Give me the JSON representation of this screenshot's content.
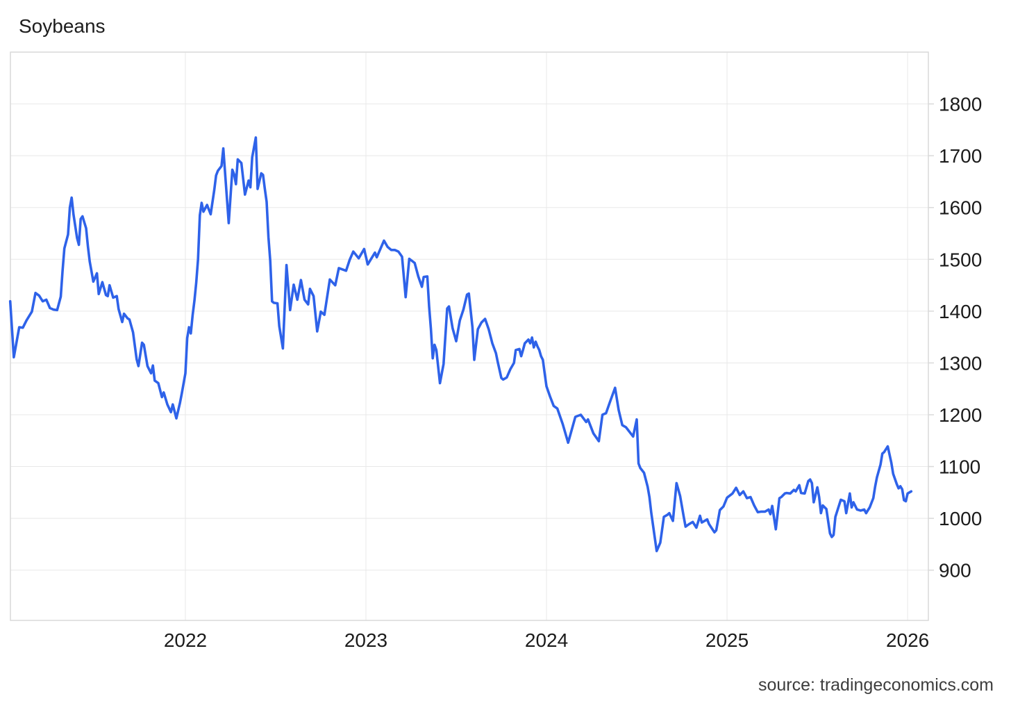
{
  "chart": {
    "title": "Soybeans",
    "source": "source: tradingeconomics.com"
  },
  "chart_data": {
    "type": "line",
    "title": "Soybeans",
    "legend": [],
    "grid": true,
    "line_color": "#2e62e9",
    "x_ticks": [
      2022,
      2023,
      2024,
      2025,
      2026
    ],
    "y_ticks": [
      900,
      1000,
      1100,
      1200,
      1300,
      1400,
      1500,
      1600,
      1700,
      1800
    ],
    "x_domain": [
      2021.031,
      2026.115
    ],
    "y_domain": [
      803,
      1900
    ],
    "series": [
      {
        "name": "Soybeans",
        "points": [
          [
            2021.03,
            1419
          ],
          [
            2021.05,
            1311
          ],
          [
            2021.08,
            1369
          ],
          [
            2021.1,
            1368
          ],
          [
            2021.12,
            1382
          ],
          [
            2021.15,
            1399
          ],
          [
            2021.17,
            1435
          ],
          [
            2021.19,
            1430
          ],
          [
            2021.21,
            1419
          ],
          [
            2021.23,
            1422
          ],
          [
            2021.25,
            1406
          ],
          [
            2021.27,
            1403
          ],
          [
            2021.29,
            1402
          ],
          [
            2021.31,
            1428
          ],
          [
            2021.32,
            1478
          ],
          [
            2021.33,
            1521
          ],
          [
            2021.35,
            1548
          ],
          [
            2021.36,
            1600
          ],
          [
            2021.37,
            1619
          ],
          [
            2021.38,
            1587
          ],
          [
            2021.4,
            1541
          ],
          [
            2021.41,
            1528
          ],
          [
            2021.42,
            1578
          ],
          [
            2021.43,
            1583
          ],
          [
            2021.45,
            1560
          ],
          [
            2021.46,
            1525
          ],
          [
            2021.47,
            1496
          ],
          [
            2021.49,
            1457
          ],
          [
            2021.51,
            1473
          ],
          [
            2021.52,
            1433
          ],
          [
            2021.54,
            1456
          ],
          [
            2021.56,
            1431
          ],
          [
            2021.57,
            1429
          ],
          [
            2021.58,
            1450
          ],
          [
            2021.6,
            1426
          ],
          [
            2021.62,
            1429
          ],
          [
            2021.63,
            1404
          ],
          [
            2021.65,
            1379
          ],
          [
            2021.66,
            1395
          ],
          [
            2021.68,
            1386
          ],
          [
            2021.69,
            1384
          ],
          [
            2021.71,
            1359
          ],
          [
            2021.73,
            1307
          ],
          [
            2021.74,
            1294
          ],
          [
            2021.76,
            1339
          ],
          [
            2021.77,
            1335
          ],
          [
            2021.79,
            1294
          ],
          [
            2021.81,
            1280
          ],
          [
            2021.82,
            1295
          ],
          [
            2021.83,
            1266
          ],
          [
            2021.85,
            1261
          ],
          [
            2021.87,
            1234
          ],
          [
            2021.88,
            1243
          ],
          [
            2021.9,
            1220
          ],
          [
            2021.92,
            1205
          ],
          [
            2021.93,
            1220
          ],
          [
            2021.95,
            1193
          ],
          [
            2021.97,
            1223
          ],
          [
            2021.98,
            1241
          ],
          [
            2022.0,
            1280
          ],
          [
            2022.01,
            1348
          ],
          [
            2022.02,
            1369
          ],
          [
            2022.03,
            1357
          ],
          [
            2022.04,
            1392
          ],
          [
            2022.05,
            1420
          ],
          [
            2022.06,
            1455
          ],
          [
            2022.07,
            1500
          ],
          [
            2022.08,
            1585
          ],
          [
            2022.09,
            1609
          ],
          [
            2022.1,
            1592
          ],
          [
            2022.12,
            1605
          ],
          [
            2022.14,
            1587
          ],
          [
            2022.16,
            1634
          ],
          [
            2022.17,
            1662
          ],
          [
            2022.18,
            1671
          ],
          [
            2022.2,
            1680
          ],
          [
            2022.21,
            1714
          ],
          [
            2022.24,
            1570
          ],
          [
            2022.26,
            1673
          ],
          [
            2022.27,
            1664
          ],
          [
            2022.28,
            1645
          ],
          [
            2022.29,
            1693
          ],
          [
            2022.31,
            1686
          ],
          [
            2022.33,
            1625
          ],
          [
            2022.35,
            1652
          ],
          [
            2022.36,
            1639
          ],
          [
            2022.37,
            1697
          ],
          [
            2022.39,
            1735
          ],
          [
            2022.4,
            1636
          ],
          [
            2022.42,
            1666
          ],
          [
            2022.43,
            1663
          ],
          [
            2022.44,
            1636
          ],
          [
            2022.45,
            1611
          ],
          [
            2022.46,
            1543
          ],
          [
            2022.47,
            1497
          ],
          [
            2022.48,
            1419
          ],
          [
            2022.49,
            1416
          ],
          [
            2022.51,
            1415
          ],
          [
            2022.52,
            1371
          ],
          [
            2022.54,
            1328
          ],
          [
            2022.56,
            1489
          ],
          [
            2022.58,
            1402
          ],
          [
            2022.6,
            1451
          ],
          [
            2022.62,
            1422
          ],
          [
            2022.64,
            1460
          ],
          [
            2022.66,
            1422
          ],
          [
            2022.68,
            1413
          ],
          [
            2022.69,
            1443
          ],
          [
            2022.71,
            1429
          ],
          [
            2022.73,
            1361
          ],
          [
            2022.75,
            1399
          ],
          [
            2022.77,
            1393
          ],
          [
            2022.8,
            1461
          ],
          [
            2022.83,
            1450
          ],
          [
            2022.85,
            1483
          ],
          [
            2022.89,
            1478
          ],
          [
            2022.91,
            1499
          ],
          [
            2022.93,
            1515
          ],
          [
            2022.96,
            1502
          ],
          [
            2022.99,
            1520
          ],
          [
            2023.01,
            1490
          ],
          [
            2023.05,
            1513
          ],
          [
            2023.06,
            1504
          ],
          [
            2023.1,
            1536
          ],
          [
            2023.12,
            1524
          ],
          [
            2023.14,
            1518
          ],
          [
            2023.16,
            1518
          ],
          [
            2023.18,
            1515
          ],
          [
            2023.2,
            1505
          ],
          [
            2023.22,
            1427
          ],
          [
            2023.24,
            1501
          ],
          [
            2023.27,
            1493
          ],
          [
            2023.29,
            1467
          ],
          [
            2023.31,
            1447
          ],
          [
            2023.32,
            1466
          ],
          [
            2023.34,
            1467
          ],
          [
            2023.35,
            1409
          ],
          [
            2023.36,
            1365
          ],
          [
            2023.37,
            1309
          ],
          [
            2023.38,
            1335
          ],
          [
            2023.39,
            1325
          ],
          [
            2023.41,
            1261
          ],
          [
            2023.43,
            1298
          ],
          [
            2023.45,
            1405
          ],
          [
            2023.46,
            1409
          ],
          [
            2023.48,
            1367
          ],
          [
            2023.5,
            1342
          ],
          [
            2023.52,
            1382
          ],
          [
            2023.54,
            1403
          ],
          [
            2023.56,
            1432
          ],
          [
            2023.57,
            1434
          ],
          [
            2023.59,
            1369
          ],
          [
            2023.6,
            1306
          ],
          [
            2023.62,
            1365
          ],
          [
            2023.64,
            1378
          ],
          [
            2023.66,
            1385
          ],
          [
            2023.68,
            1365
          ],
          [
            2023.7,
            1338
          ],
          [
            2023.72,
            1319
          ],
          [
            2023.73,
            1302
          ],
          [
            2023.75,
            1271
          ],
          [
            2023.76,
            1268
          ],
          [
            2023.78,
            1272
          ],
          [
            2023.8,
            1288
          ],
          [
            2023.82,
            1300
          ],
          [
            2023.83,
            1325
          ],
          [
            2023.85,
            1327
          ],
          [
            2023.86,
            1313
          ],
          [
            2023.87,
            1325
          ],
          [
            2023.88,
            1338
          ],
          [
            2023.9,
            1345
          ],
          [
            2023.91,
            1338
          ],
          [
            2023.92,
            1349
          ],
          [
            2023.93,
            1330
          ],
          [
            2023.94,
            1341
          ],
          [
            2023.95,
            1332
          ],
          [
            2023.96,
            1325
          ],
          [
            2023.97,
            1313
          ],
          [
            2023.98,
            1306
          ],
          [
            2023.99,
            1280
          ],
          [
            2024.0,
            1255
          ],
          [
            2024.02,
            1235
          ],
          [
            2024.04,
            1217
          ],
          [
            2024.06,
            1212
          ],
          [
            2024.09,
            1182
          ],
          [
            2024.12,
            1146
          ],
          [
            2024.16,
            1196
          ],
          [
            2024.19,
            1200
          ],
          [
            2024.22,
            1186
          ],
          [
            2024.23,
            1191
          ],
          [
            2024.26,
            1164
          ],
          [
            2024.29,
            1149
          ],
          [
            2024.31,
            1200
          ],
          [
            2024.33,
            1203
          ],
          [
            2024.35,
            1223
          ],
          [
            2024.38,
            1252
          ],
          [
            2024.4,
            1209
          ],
          [
            2024.42,
            1180
          ],
          [
            2024.43,
            1178
          ],
          [
            2024.44,
            1176
          ],
          [
            2024.48,
            1158
          ],
          [
            2024.5,
            1191
          ],
          [
            2024.51,
            1106
          ],
          [
            2024.52,
            1097
          ],
          [
            2024.54,
            1088
          ],
          [
            2024.56,
            1061
          ],
          [
            2024.57,
            1041
          ],
          [
            2024.58,
            1011
          ],
          [
            2024.61,
            937
          ],
          [
            2024.63,
            953
          ],
          [
            2024.65,
            1003
          ],
          [
            2024.67,
            1007
          ],
          [
            2024.68,
            1010
          ],
          [
            2024.7,
            995
          ],
          [
            2024.72,
            1068
          ],
          [
            2024.74,
            1043
          ],
          [
            2024.76,
            1003
          ],
          [
            2024.77,
            984
          ],
          [
            2024.79,
            989
          ],
          [
            2024.81,
            993
          ],
          [
            2024.83,
            982
          ],
          [
            2024.85,
            1005
          ],
          [
            2024.86,
            992
          ],
          [
            2024.87,
            994
          ],
          [
            2024.89,
            998
          ],
          [
            2024.9,
            989
          ],
          [
            2024.93,
            973
          ],
          [
            2024.94,
            977
          ],
          [
            2024.96,
            1016
          ],
          [
            2024.98,
            1023
          ],
          [
            2025.0,
            1040
          ],
          [
            2025.03,
            1048
          ],
          [
            2025.05,
            1059
          ],
          [
            2025.07,
            1045
          ],
          [
            2025.09,
            1052
          ],
          [
            2025.11,
            1039
          ],
          [
            2025.13,
            1041
          ],
          [
            2025.15,
            1025
          ],
          [
            2025.17,
            1012
          ],
          [
            2025.19,
            1013
          ],
          [
            2025.21,
            1013
          ],
          [
            2025.23,
            1017
          ],
          [
            2025.24,
            1008
          ],
          [
            2025.25,
            1024
          ],
          [
            2025.27,
            979
          ],
          [
            2025.29,
            1039
          ],
          [
            2025.3,
            1041
          ],
          [
            2025.32,
            1048
          ],
          [
            2025.33,
            1049
          ],
          [
            2025.35,
            1048
          ],
          [
            2025.37,
            1055
          ],
          [
            2025.38,
            1052
          ],
          [
            2025.4,
            1064
          ],
          [
            2025.41,
            1049
          ],
          [
            2025.43,
            1048
          ],
          [
            2025.45,
            1072
          ],
          [
            2025.46,
            1075
          ],
          [
            2025.47,
            1068
          ],
          [
            2025.48,
            1031
          ],
          [
            2025.5,
            1060
          ],
          [
            2025.51,
            1041
          ],
          [
            2025.52,
            1010
          ],
          [
            2025.53,
            1025
          ],
          [
            2025.55,
            1018
          ],
          [
            2025.57,
            971
          ],
          [
            2025.58,
            964
          ],
          [
            2025.59,
            968
          ],
          [
            2025.6,
            1003
          ],
          [
            2025.62,
            1025
          ],
          [
            2025.63,
            1036
          ],
          [
            2025.65,
            1033
          ],
          [
            2025.66,
            1010
          ],
          [
            2025.68,
            1048
          ],
          [
            2025.69,
            1021
          ],
          [
            2025.7,
            1031
          ],
          [
            2025.72,
            1017
          ],
          [
            2025.74,
            1015
          ],
          [
            2025.76,
            1017
          ],
          [
            2025.77,
            1010
          ],
          [
            2025.79,
            1021
          ],
          [
            2025.81,
            1039
          ],
          [
            2025.82,
            1061
          ],
          [
            2025.83,
            1079
          ],
          [
            2025.85,
            1104
          ],
          [
            2025.86,
            1125
          ],
          [
            2025.87,
            1128
          ],
          [
            2025.89,
            1139
          ],
          [
            2025.91,
            1107
          ],
          [
            2025.92,
            1086
          ],
          [
            2025.94,
            1066
          ],
          [
            2025.95,
            1058
          ],
          [
            2025.96,
            1062
          ],
          [
            2025.97,
            1056
          ],
          [
            2025.98,
            1035
          ],
          [
            2025.99,
            1033
          ],
          [
            2026.0,
            1048
          ],
          [
            2026.02,
            1052
          ]
        ]
      }
    ]
  }
}
